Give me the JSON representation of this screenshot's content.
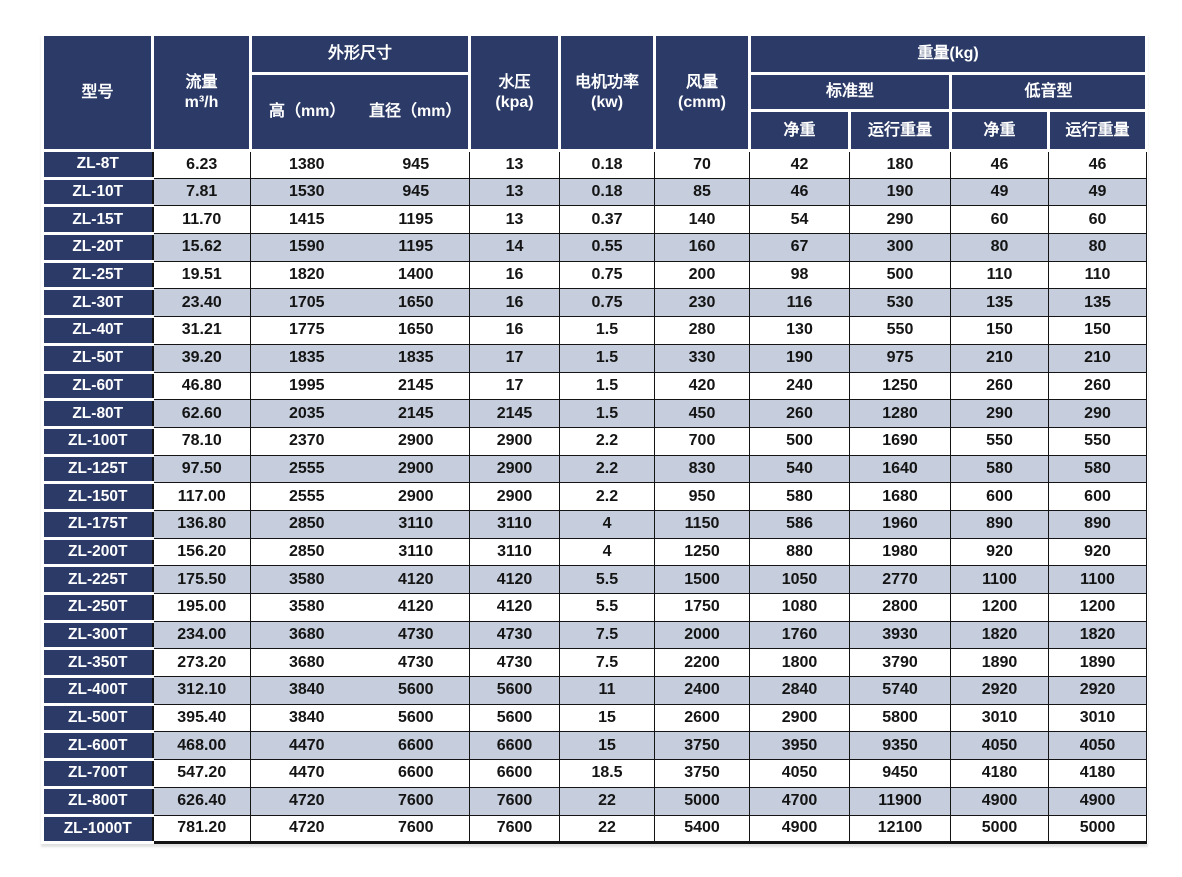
{
  "page": {
    "background": "#ffffff"
  },
  "colors": {
    "header_bg": "#2b3a66",
    "header_text": "#ffffff",
    "row_alt_bg": "#c6cedd",
    "row_bg": "#ffffff",
    "grid_border": "#141414",
    "body_text": "#141414"
  },
  "table": {
    "header": {
      "model": "型号",
      "flow": "流量\nm³/h",
      "dimensions": "外形尺寸",
      "height": "高（mm）",
      "diameter": "直径（mm）",
      "pressure": "水压\n(kpa)",
      "motor_power": "电机功率\n(kw)",
      "air_volume": "风量\n(cmm)",
      "weight": "重量(kg)",
      "standard_type": "标准型",
      "low_noise_type": "低音型",
      "net_weight_std": "净重",
      "operating_weight_std": "运行重量",
      "net_weight_low": "净重",
      "operating_weight_low": "运行重量"
    },
    "rows": [
      [
        "ZL-8T",
        "6.23",
        "1380",
        "945",
        "13",
        "0.18",
        "70",
        "42",
        "180",
        "46",
        "46"
      ],
      [
        "ZL-10T",
        "7.81",
        "1530",
        "945",
        "13",
        "0.18",
        "85",
        "46",
        "190",
        "49",
        "49"
      ],
      [
        "ZL-15T",
        "11.70",
        "1415",
        "1195",
        "13",
        "0.37",
        "140",
        "54",
        "290",
        "60",
        "60"
      ],
      [
        "ZL-20T",
        "15.62",
        "1590",
        "1195",
        "14",
        "0.55",
        "160",
        "67",
        "300",
        "80",
        "80"
      ],
      [
        "ZL-25T",
        "19.51",
        "1820",
        "1400",
        "16",
        "0.75",
        "200",
        "98",
        "500",
        "110",
        "110"
      ],
      [
        "ZL-30T",
        "23.40",
        "1705",
        "1650",
        "16",
        "0.75",
        "230",
        "116",
        "530",
        "135",
        "135"
      ],
      [
        "ZL-40T",
        "31.21",
        "1775",
        "1650",
        "16",
        "1.5",
        "280",
        "130",
        "550",
        "150",
        "150"
      ],
      [
        "ZL-50T",
        "39.20",
        "1835",
        "1835",
        "17",
        "1.5",
        "330",
        "190",
        "975",
        "210",
        "210"
      ],
      [
        "ZL-60T",
        "46.80",
        "1995",
        "2145",
        "17",
        "1.5",
        "420",
        "240",
        "1250",
        "260",
        "260"
      ],
      [
        "ZL-80T",
        "62.60",
        "2035",
        "2145",
        "2145",
        "1.5",
        "450",
        "260",
        "1280",
        "290",
        "290"
      ],
      [
        "ZL-100T",
        "78.10",
        "2370",
        "2900",
        "2900",
        "2.2",
        "700",
        "500",
        "1690",
        "550",
        "550"
      ],
      [
        "ZL-125T",
        "97.50",
        "2555",
        "2900",
        "2900",
        "2.2",
        "830",
        "540",
        "1640",
        "580",
        "580"
      ],
      [
        "ZL-150T",
        "117.00",
        "2555",
        "2900",
        "2900",
        "2.2",
        "950",
        "580",
        "1680",
        "600",
        "600"
      ],
      [
        "ZL-175T",
        "136.80",
        "2850",
        "3110",
        "3110",
        "4",
        "1150",
        "586",
        "1960",
        "890",
        "890"
      ],
      [
        "ZL-200T",
        "156.20",
        "2850",
        "3110",
        "3110",
        "4",
        "1250",
        "880",
        "1980",
        "920",
        "920"
      ],
      [
        "ZL-225T",
        "175.50",
        "3580",
        "4120",
        "4120",
        "5.5",
        "1500",
        "1050",
        "2770",
        "1100",
        "1100"
      ],
      [
        "ZL-250T",
        "195.00",
        "3580",
        "4120",
        "4120",
        "5.5",
        "1750",
        "1080",
        "2800",
        "1200",
        "1200"
      ],
      [
        "ZL-300T",
        "234.00",
        "3680",
        "4730",
        "4730",
        "7.5",
        "2000",
        "1760",
        "3930",
        "1820",
        "1820"
      ],
      [
        "ZL-350T",
        "273.20",
        "3680",
        "4730",
        "4730",
        "7.5",
        "2200",
        "1800",
        "3790",
        "1890",
        "1890"
      ],
      [
        "ZL-400T",
        "312.10",
        "3840",
        "5600",
        "5600",
        "11",
        "2400",
        "2840",
        "5740",
        "2920",
        "2920"
      ],
      [
        "ZL-500T",
        "395.40",
        "3840",
        "5600",
        "5600",
        "15",
        "2600",
        "2900",
        "5800",
        "3010",
        "3010"
      ],
      [
        "ZL-600T",
        "468.00",
        "4470",
        "6600",
        "6600",
        "15",
        "3750",
        "3950",
        "9350",
        "4050",
        "4050"
      ],
      [
        "ZL-700T",
        "547.20",
        "4470",
        "6600",
        "6600",
        "18.5",
        "3750",
        "4050",
        "9450",
        "4180",
        "4180"
      ],
      [
        "ZL-800T",
        "626.40",
        "4720",
        "7600",
        "7600",
        "22",
        "5000",
        "4700",
        "11900",
        "4900",
        "4900"
      ],
      [
        "ZL-1000T",
        "781.20",
        "4720",
        "7600",
        "7600",
        "22",
        "5400",
        "4900",
        "12100",
        "5000",
        "5000"
      ]
    ]
  }
}
